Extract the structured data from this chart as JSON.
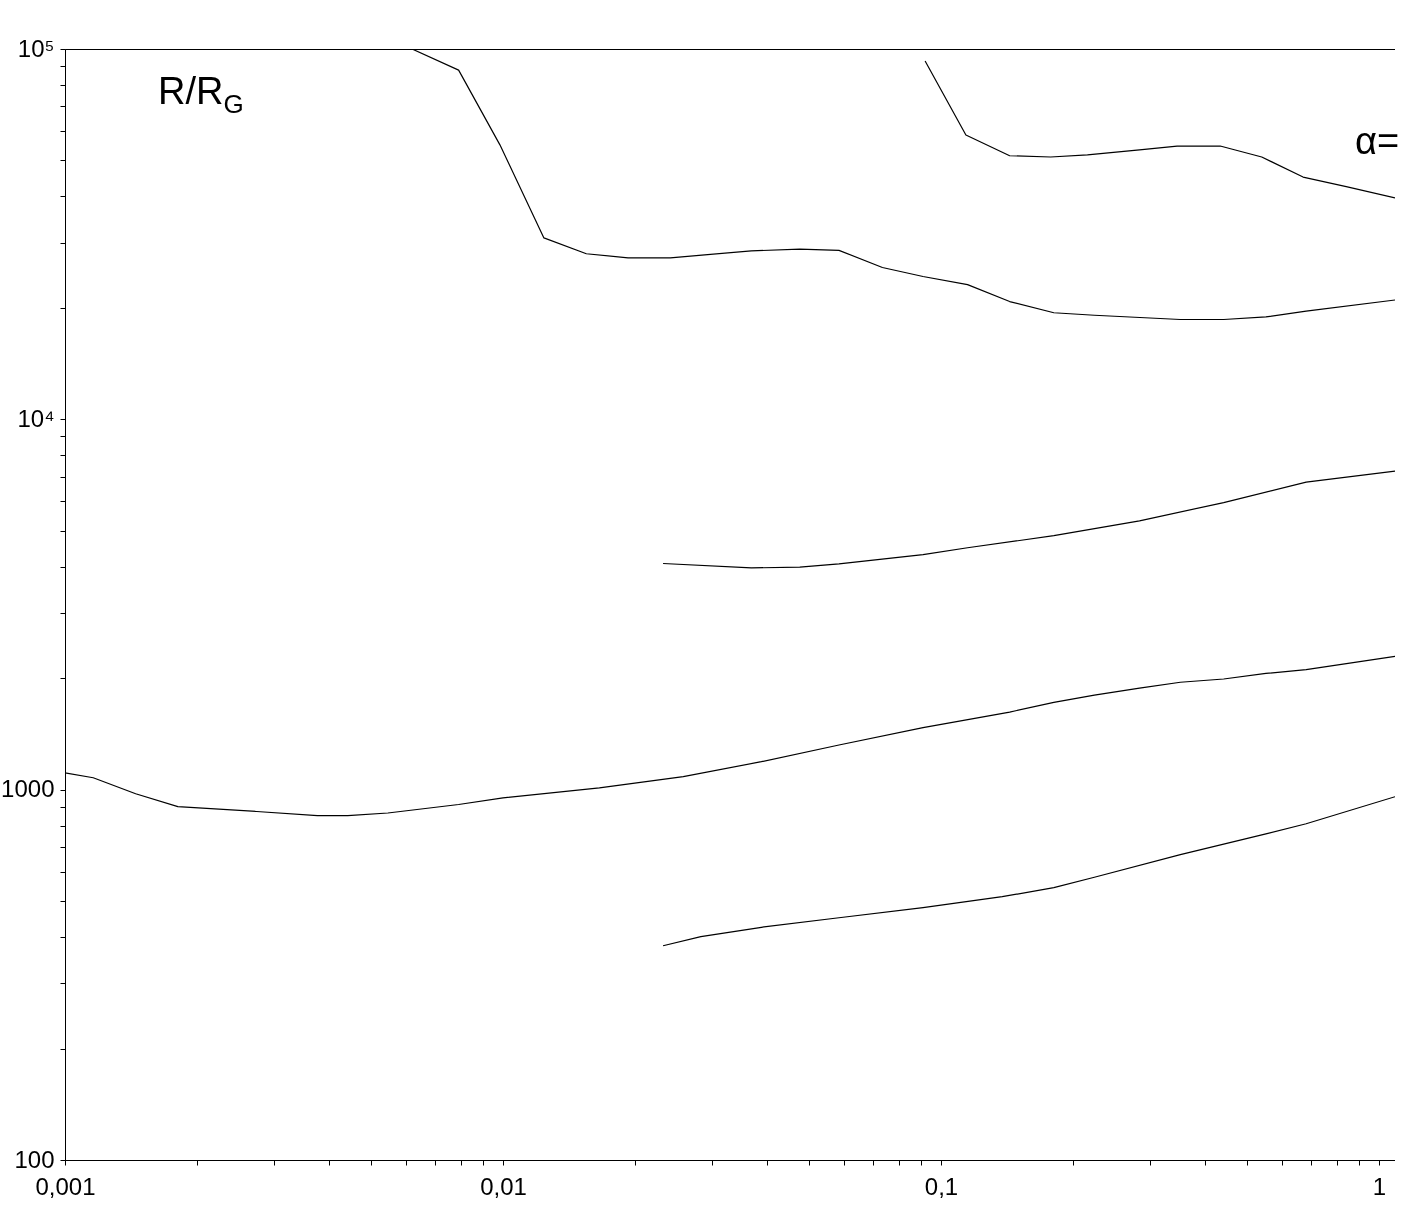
{
  "chart_data": {
    "type": "line",
    "log": "xy",
    "xlim": [
      0.001,
      1.088
    ],
    "ylim": [
      100,
      100000
    ],
    "xticks": [
      {
        "value": 0.001,
        "label": "0,001"
      },
      {
        "value": 0.002,
        "label": null
      },
      {
        "value": 0.003,
        "label": null
      },
      {
        "value": 0.004,
        "label": null
      },
      {
        "value": 0.005,
        "label": null
      },
      {
        "value": 0.006,
        "label": null
      },
      {
        "value": 0.007,
        "label": null
      },
      {
        "value": 0.008,
        "label": null
      },
      {
        "value": 0.009,
        "label": null
      },
      {
        "value": 0.01,
        "label": "0,01"
      },
      {
        "value": 0.02,
        "label": null
      },
      {
        "value": 0.03,
        "label": null
      },
      {
        "value": 0.04,
        "label": null
      },
      {
        "value": 0.05,
        "label": null
      },
      {
        "value": 0.06,
        "label": null
      },
      {
        "value": 0.07,
        "label": null
      },
      {
        "value": 0.08,
        "label": null
      },
      {
        "value": 0.09,
        "label": null
      },
      {
        "value": 0.1,
        "label": "0,1"
      },
      {
        "value": 0.2,
        "label": null
      },
      {
        "value": 0.3,
        "label": null
      },
      {
        "value": 0.4,
        "label": null
      },
      {
        "value": 0.5,
        "label": null
      },
      {
        "value": 0.6,
        "label": null
      },
      {
        "value": 0.7,
        "label": null
      },
      {
        "value": 0.8,
        "label": null
      },
      {
        "value": 0.9,
        "label": null
      },
      1
    ],
    "yticks": [
      100,
      {
        "value": 200,
        "label": null
      },
      {
        "value": 300,
        "label": null
      },
      {
        "value": 400,
        "label": null
      },
      {
        "value": 500,
        "label": null
      },
      {
        "value": 600,
        "label": null
      },
      {
        "value": 700,
        "label": null
      },
      {
        "value": 800,
        "label": null
      },
      {
        "value": 900,
        "label": null
      },
      1000,
      {
        "value": 2000,
        "label": null
      },
      {
        "value": 3000,
        "label": null
      },
      {
        "value": 4000,
        "label": null
      },
      {
        "value": 5000,
        "label": null
      },
      {
        "value": 6000,
        "label": null
      },
      {
        "value": 7000,
        "label": null
      },
      {
        "value": 8000,
        "label": null
      },
      {
        "value": 9000,
        "label": null
      },
      {
        "value": 10000,
        "label": "10⁴"
      },
      {
        "value": 20000,
        "label": null
      },
      {
        "value": 30000,
        "label": null
      },
      {
        "value": 40000,
        "label": null
      },
      {
        "value": 50000,
        "label": null
      },
      {
        "value": 60000,
        "label": null
      },
      {
        "value": 70000,
        "label": null
      },
      {
        "value": 80000,
        "label": null
      },
      {
        "value": 90000,
        "label": null
      },
      {
        "value": 100000,
        "label": "10⁵"
      }
    ],
    "annotations": [
      "R/R$_{G}$",
      "α="
    ],
    "series": [
      {
        "color": "#000000",
        "x": [
          0.0062,
          0.00792,
          0.00984,
          0.0124,
          0.0155,
          0.0193,
          0.0241,
          0.0369,
          0.0476,
          0.0585,
          0.0735,
          0.091,
          0.115,
          0.1435,
          0.181,
          0.224,
          0.352,
          0.442,
          0.552,
          0.682,
          1.088
        ],
        "values": [
          100000,
          87700,
          55100,
          30900,
          28000,
          27300,
          27300,
          28500,
          28800,
          28600,
          25700,
          24300,
          23100,
          20800,
          19400,
          19100,
          18600,
          18600,
          18900,
          19600,
          21000
        ]
      },
      {
        "color": "#000000",
        "x": [
          0.092,
          0.114,
          0.1435,
          0.178,
          0.216,
          0.284,
          0.346,
          0.434,
          0.54,
          0.671,
          0.842,
          1.088
        ],
        "values": [
          92800,
          58600,
          51500,
          51100,
          51800,
          53400,
          54700,
          54700,
          51100,
          45100,
          42500,
          39600
        ]
      },
      {
        "color": "#000000",
        "x": [
          0.0232,
          0.0369,
          0.0476,
          0.0585,
          0.091,
          0.115,
          0.181,
          0.284,
          0.442,
          0.682,
          1.088
        ],
        "values": [
          4080,
          3970,
          3990,
          4070,
          4310,
          4500,
          4850,
          5320,
          5960,
          6770,
          7250
        ]
      },
      {
        "color": "#000000",
        "x": [
          0.001,
          0.00116,
          0.00145,
          0.00181,
          0.00274,
          0.00377,
          0.00442,
          0.00546,
          0.00792,
          0.01,
          0.0166,
          0.0258,
          0.0389,
          0.0585,
          0.091,
          0.1435,
          0.181,
          0.224,
          0.284,
          0.352,
          0.442,
          0.552,
          0.682,
          1.088
        ],
        "values": [
          1110,
          1077,
          975,
          900,
          873,
          851,
          851,
          865,
          912,
          950,
          1011,
          1085,
          1190,
          1320,
          1470,
          1620,
          1720,
          1800,
          1880,
          1950,
          1990,
          2060,
          2110,
          2290
        ]
      },
      {
        "color": "#000000",
        "x": [
          0.0232,
          0.0283,
          0.0389,
          0.0585,
          0.091,
          0.138,
          0.181,
          0.224,
          0.352,
          0.552,
          0.682,
          1.088
        ],
        "values": [
          379,
          401,
          425,
          451,
          480,
          514,
          544,
          580,
          668,
          760,
          809,
          957
        ]
      }
    ]
  }
}
